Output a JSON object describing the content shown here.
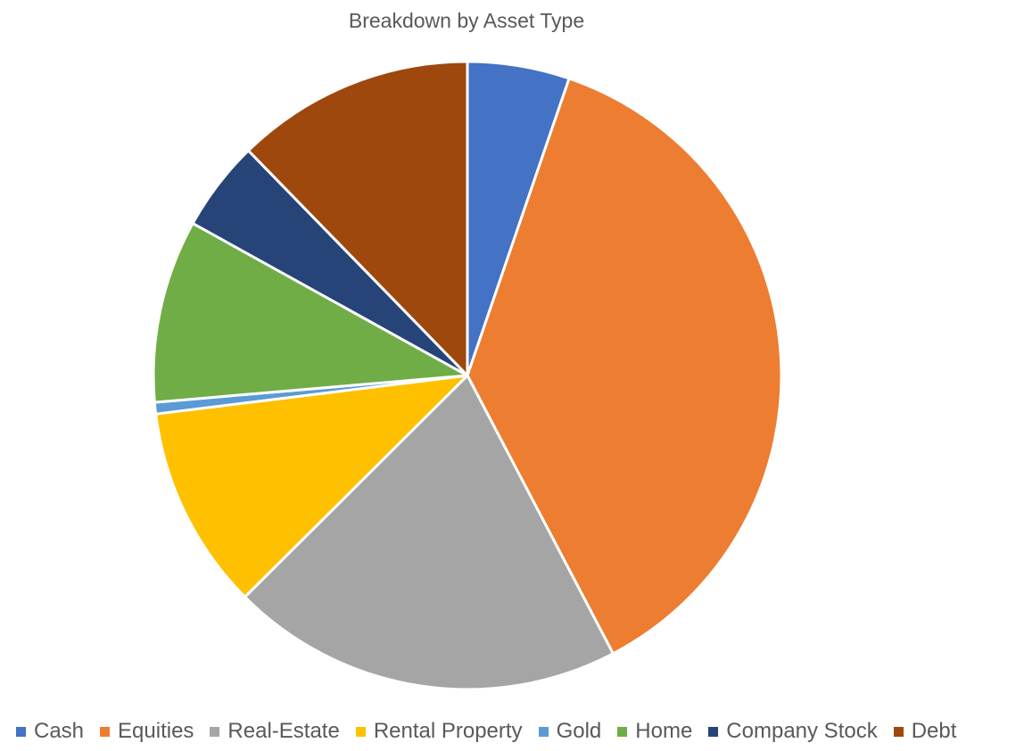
{
  "chart_data": {
    "type": "pie",
    "title": "Breakdown by Asset Type",
    "legend_position": "bottom",
    "start_angle_deg": 0,
    "direction": "clockwise",
    "slices": [
      {
        "label": "Cash",
        "value": 5.3,
        "color": "#4472C4"
      },
      {
        "label": "Equities",
        "value": 37.4,
        "color": "#ED7D31"
      },
      {
        "label": "Real-Estate",
        "value": 20.4,
        "color": "#A5A5A5"
      },
      {
        "label": "Rental Property",
        "value": 10.6,
        "color": "#FFC000"
      },
      {
        "label": "Gold",
        "value": 0.6,
        "color": "#5B9BD5"
      },
      {
        "label": "Home",
        "value": 9.5,
        "color": "#70AD47"
      },
      {
        "label": "Company Stock",
        "value": 4.7,
        "color": "#264478"
      },
      {
        "label": "Debt",
        "value": 12.4,
        "color": "#9E480E"
      }
    ]
  }
}
